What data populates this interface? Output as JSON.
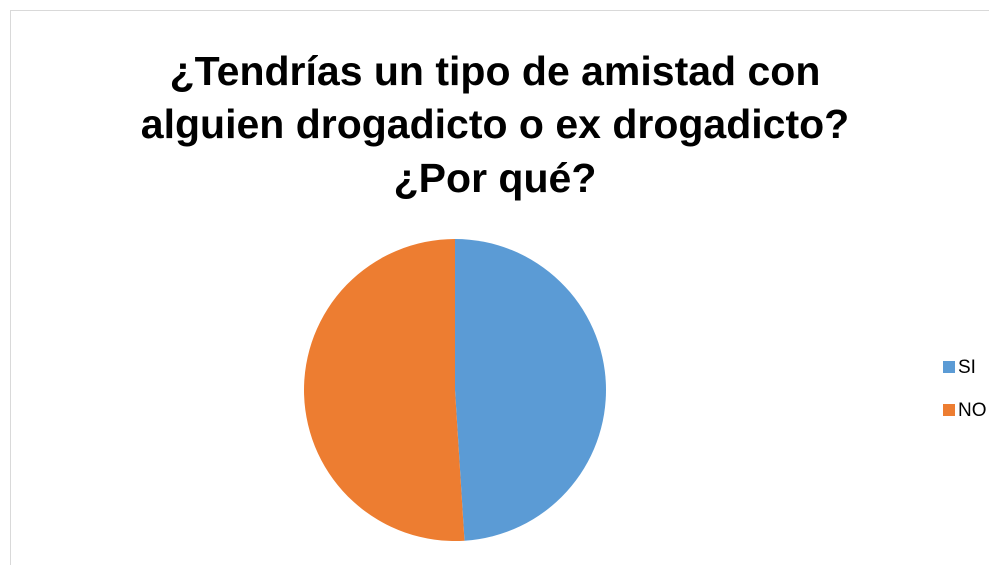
{
  "chart_data": {
    "type": "pie",
    "title": [
      "¿Tendrías un tipo de amistad con",
      "alguien drogadicto o ex drogadicto?",
      "¿Por qué?"
    ],
    "categories": [
      "SI",
      "NO"
    ],
    "values": [
      49,
      51
    ],
    "colors": [
      "#5b9bd5",
      "#ed7d31"
    ],
    "legend": "right"
  }
}
